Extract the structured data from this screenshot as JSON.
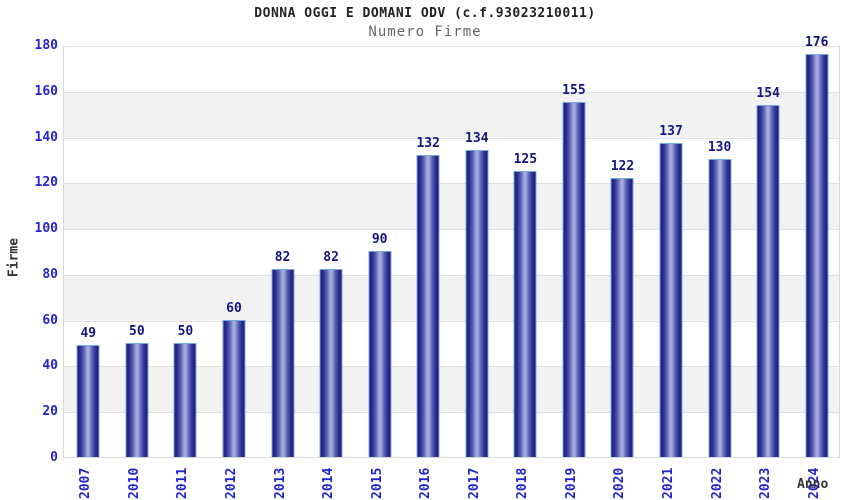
{
  "chart_data": {
    "type": "bar",
    "title": "DONNA OGGI E DOMANI ODV (c.f.93023210011)",
    "subtitle": "Numero Firme",
    "xlabel": "Anno",
    "ylabel": "Firme",
    "categories": [
      "2007",
      "2010",
      "2011",
      "2012",
      "2013",
      "2014",
      "2015",
      "2016",
      "2017",
      "2018",
      "2019",
      "2020",
      "2021",
      "2022",
      "2023",
      "2024"
    ],
    "values": [
      49,
      50,
      50,
      60,
      82,
      82,
      90,
      132,
      134,
      125,
      155,
      122,
      137,
      130,
      154,
      176
    ],
    "ylim": [
      0,
      180
    ],
    "ytick_step": 20,
    "yticks": [
      0,
      20,
      40,
      60,
      80,
      100,
      120,
      140,
      160,
      180
    ],
    "grid": true,
    "legend": "none",
    "colors": {
      "bar_edge": "#1c1c78",
      "bar_highlight": "#aab0de",
      "bar_cap": "#72aae2",
      "tick_label": "#2424cc",
      "value_label": "#151580",
      "band_gray": "#f2f2f2",
      "band_white": "#ffffff",
      "gridline": "#e0e0e0",
      "title": "#222222",
      "subtitle": "#666666",
      "axis_title": "#333333"
    }
  }
}
